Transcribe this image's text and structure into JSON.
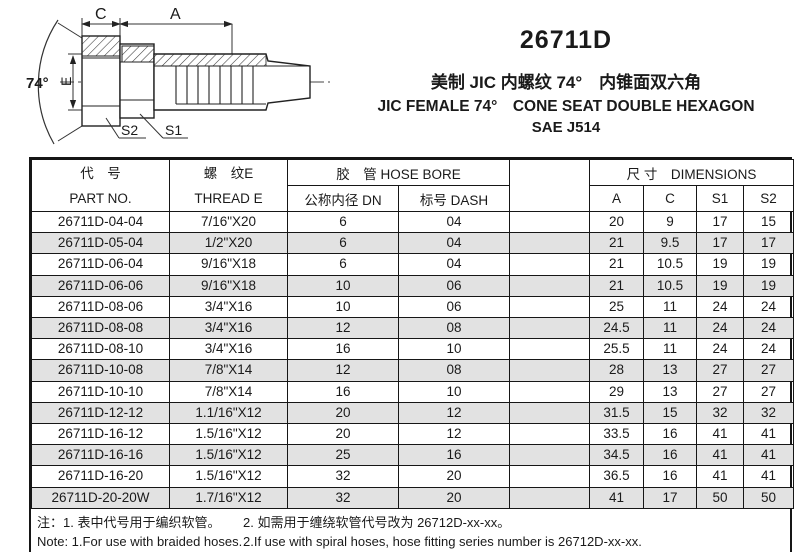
{
  "header": {
    "title": "26711D",
    "subtitle_zh": "美制 JIC 内螺纹 74°　内锥面双六角",
    "subtitle_en": "JIC FEMALE 74°　CONE SEAT DOUBLE HEXAGON",
    "standard": "SAE J514"
  },
  "drawing": {
    "dim_c": "C",
    "dim_a": "A",
    "dim_e": "E",
    "angle": "74°",
    "s2": "S2",
    "s1": "S1"
  },
  "table": {
    "col_headers": {
      "part_no_zh": "代　号",
      "part_no_en": "PART NO.",
      "thread_zh": "螺　纹E",
      "thread_en": "THREAD E",
      "hose_bore": "胶　管 HOSE BORE",
      "dn": "公称内径 DN",
      "dash": "标号 DASH",
      "dimensions": "尺 寸　DIMENSIONS",
      "a": "A",
      "c": "C",
      "s1": "S1",
      "s2": "S2"
    },
    "rows": [
      {
        "part_no": "26711D-04-04",
        "thread": "7/16\"X20",
        "dn": "6",
        "dash": "04",
        "a": "20",
        "c": "9",
        "s1": "17",
        "s2": "15"
      },
      {
        "part_no": "26711D-05-04",
        "thread": "1/2\"X20",
        "dn": "6",
        "dash": "04",
        "a": "21",
        "c": "9.5",
        "s1": "17",
        "s2": "17"
      },
      {
        "part_no": "26711D-06-04",
        "thread": "9/16\"X18",
        "dn": "6",
        "dash": "04",
        "a": "21",
        "c": "10.5",
        "s1": "19",
        "s2": "19"
      },
      {
        "part_no": "26711D-06-06",
        "thread": "9/16\"X18",
        "dn": "10",
        "dash": "06",
        "a": "21",
        "c": "10.5",
        "s1": "19",
        "s2": "19"
      },
      {
        "part_no": "26711D-08-06",
        "thread": "3/4\"X16",
        "dn": "10",
        "dash": "06",
        "a": "25",
        "c": "11",
        "s1": "24",
        "s2": "24"
      },
      {
        "part_no": "26711D-08-08",
        "thread": "3/4\"X16",
        "dn": "12",
        "dash": "08",
        "a": "24.5",
        "c": "11",
        "s1": "24",
        "s2": "24"
      },
      {
        "part_no": "26711D-08-10",
        "thread": "3/4\"X16",
        "dn": "16",
        "dash": "10",
        "a": "25.5",
        "c": "11",
        "s1": "24",
        "s2": "24"
      },
      {
        "part_no": "26711D-10-08",
        "thread": "7/8\"X14",
        "dn": "12",
        "dash": "08",
        "a": "28",
        "c": "13",
        "s1": "27",
        "s2": "27"
      },
      {
        "part_no": "26711D-10-10",
        "thread": "7/8\"X14",
        "dn": "16",
        "dash": "10",
        "a": "29",
        "c": "13",
        "s1": "27",
        "s2": "27"
      },
      {
        "part_no": "26711D-12-12",
        "thread": "1.1/16\"X12",
        "dn": "20",
        "dash": "12",
        "a": "31.5",
        "c": "15",
        "s1": "32",
        "s2": "32"
      },
      {
        "part_no": "26711D-16-12",
        "thread": "1.5/16\"X12",
        "dn": "20",
        "dash": "12",
        "a": "33.5",
        "c": "16",
        "s1": "41",
        "s2": "41"
      },
      {
        "part_no": "26711D-16-16",
        "thread": "1.5/16\"X12",
        "dn": "25",
        "dash": "16",
        "a": "34.5",
        "c": "16",
        "s1": "41",
        "s2": "41"
      },
      {
        "part_no": "26711D-16-20",
        "thread": "1.5/16\"X12",
        "dn": "32",
        "dash": "20",
        "a": "36.5",
        "c": "16",
        "s1": "41",
        "s2": "41"
      },
      {
        "part_no": "26711D-20-20W",
        "thread": "1.7/16\"X12",
        "dn": "32",
        "dash": "20",
        "a": "41",
        "c": "17",
        "s1": "50",
        "s2": "50"
      }
    ]
  },
  "notes": {
    "zh_1": "注：1. 表中代号用于编织软管。",
    "zh_2": "2. 如需用于缠绕软管代号改为 26712D-xx-xx。",
    "en_1": "Note: 1.For use with braided hoses.",
    "en_2": "2.If use with spiral hoses, hose fitting series number is 26712D-xx-xx."
  },
  "colors": {
    "row_alt": "#e2e2e2",
    "border": "#161616",
    "text": "#1a1a1a"
  }
}
